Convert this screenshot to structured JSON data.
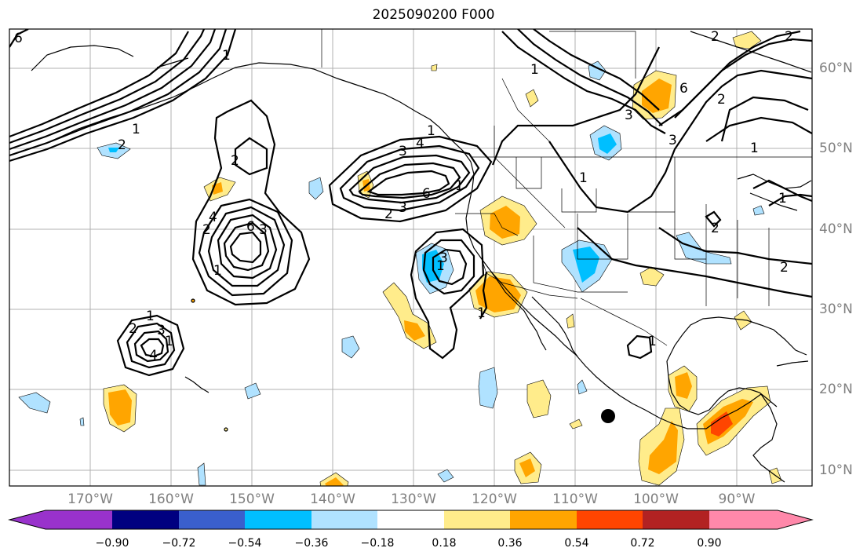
{
  "title": "2025090200 F000",
  "lon_labels": [
    "170°W",
    "160°W",
    "150°W",
    "140°W",
    "130°W",
    "120°W",
    "110°W",
    "100°W",
    "90°W"
  ],
  "lat_labels": [
    "60°N",
    "50°N",
    "40°N",
    "30°N",
    "20°N",
    "10°N"
  ],
  "contour_labels": [
    "6",
    "1",
    "1",
    "2",
    "2",
    "4",
    "6",
    "3",
    "2",
    "1",
    "1",
    "2",
    "4",
    "4",
    "6",
    "3",
    "2",
    "3",
    "1",
    "1",
    "1",
    "1",
    "3",
    "6",
    "2",
    "1",
    "3",
    "1",
    "1",
    "2",
    "2",
    "1",
    "2",
    "3",
    "1",
    "2",
    "3",
    "1"
  ],
  "colorbar": {
    "ticks": [
      "−0.90",
      "−0.72",
      "−0.54",
      "−0.36",
      "−0.18",
      "0.18",
      "0.36",
      "0.54",
      "0.72",
      "0.90"
    ],
    "colors": [
      "#9932cc",
      "#000080",
      "#3a5fcd",
      "#00bfff",
      "#b0e2ff",
      "#ffffff",
      "#ffec8b",
      "#ffa500",
      "#ff4500",
      "#b22222",
      "#ff88aa"
    ]
  },
  "marker": "hurricane-center-dot"
}
